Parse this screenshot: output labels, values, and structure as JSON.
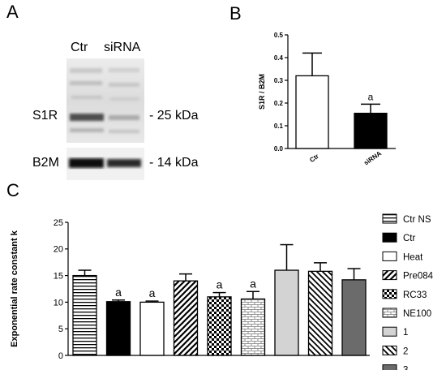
{
  "panels": {
    "a": "A",
    "b": "B",
    "c": "C"
  },
  "blot": {
    "lanes": [
      "Ctr",
      "siRNA"
    ],
    "rows": [
      {
        "protein": "S1R",
        "size": "- 25 kDa"
      },
      {
        "protein": "B2M",
        "size": "- 14 kDa"
      }
    ]
  },
  "chart_data": [
    {
      "type": "bar",
      "ylabel": "S1R / B2M",
      "ylim": [
        0,
        0.5
      ],
      "yticks": [
        "0.0",
        "0.1",
        "0.2",
        "0.3",
        "0.4",
        "0.5"
      ],
      "categories": [
        "Ctr",
        "siRNA"
      ],
      "values": [
        0.32,
        0.155
      ],
      "errors": [
        0.1,
        0.04
      ],
      "annotations": [
        "",
        "a"
      ],
      "fills": [
        "open",
        "solid"
      ]
    },
    {
      "type": "bar",
      "ylabel": "Exponential rate constant k",
      "ylim": [
        0,
        25
      ],
      "yticks": [
        "0",
        "5",
        "10",
        "15",
        "20",
        "25"
      ],
      "categories": [
        "Ctr NS",
        "Ctr",
        "Heat",
        "Pre084",
        "RC33",
        "NE100",
        "1",
        "2",
        "3"
      ],
      "values": [
        15.0,
        10.1,
        10.0,
        14.0,
        11.0,
        10.6,
        16.0,
        15.8,
        14.2
      ],
      "errors": [
        1.0,
        0.3,
        0.2,
        1.3,
        0.8,
        1.4,
        4.8,
        1.6,
        2.1
      ],
      "annotations": [
        "",
        "a",
        "a",
        "",
        "a",
        "a",
        "",
        "",
        ""
      ],
      "legend_position": "right",
      "fills": [
        "hstripes",
        "solid",
        "open",
        "diag",
        "checker",
        "brick",
        "lightgray",
        "diaglight",
        "darkgray"
      ]
    }
  ]
}
